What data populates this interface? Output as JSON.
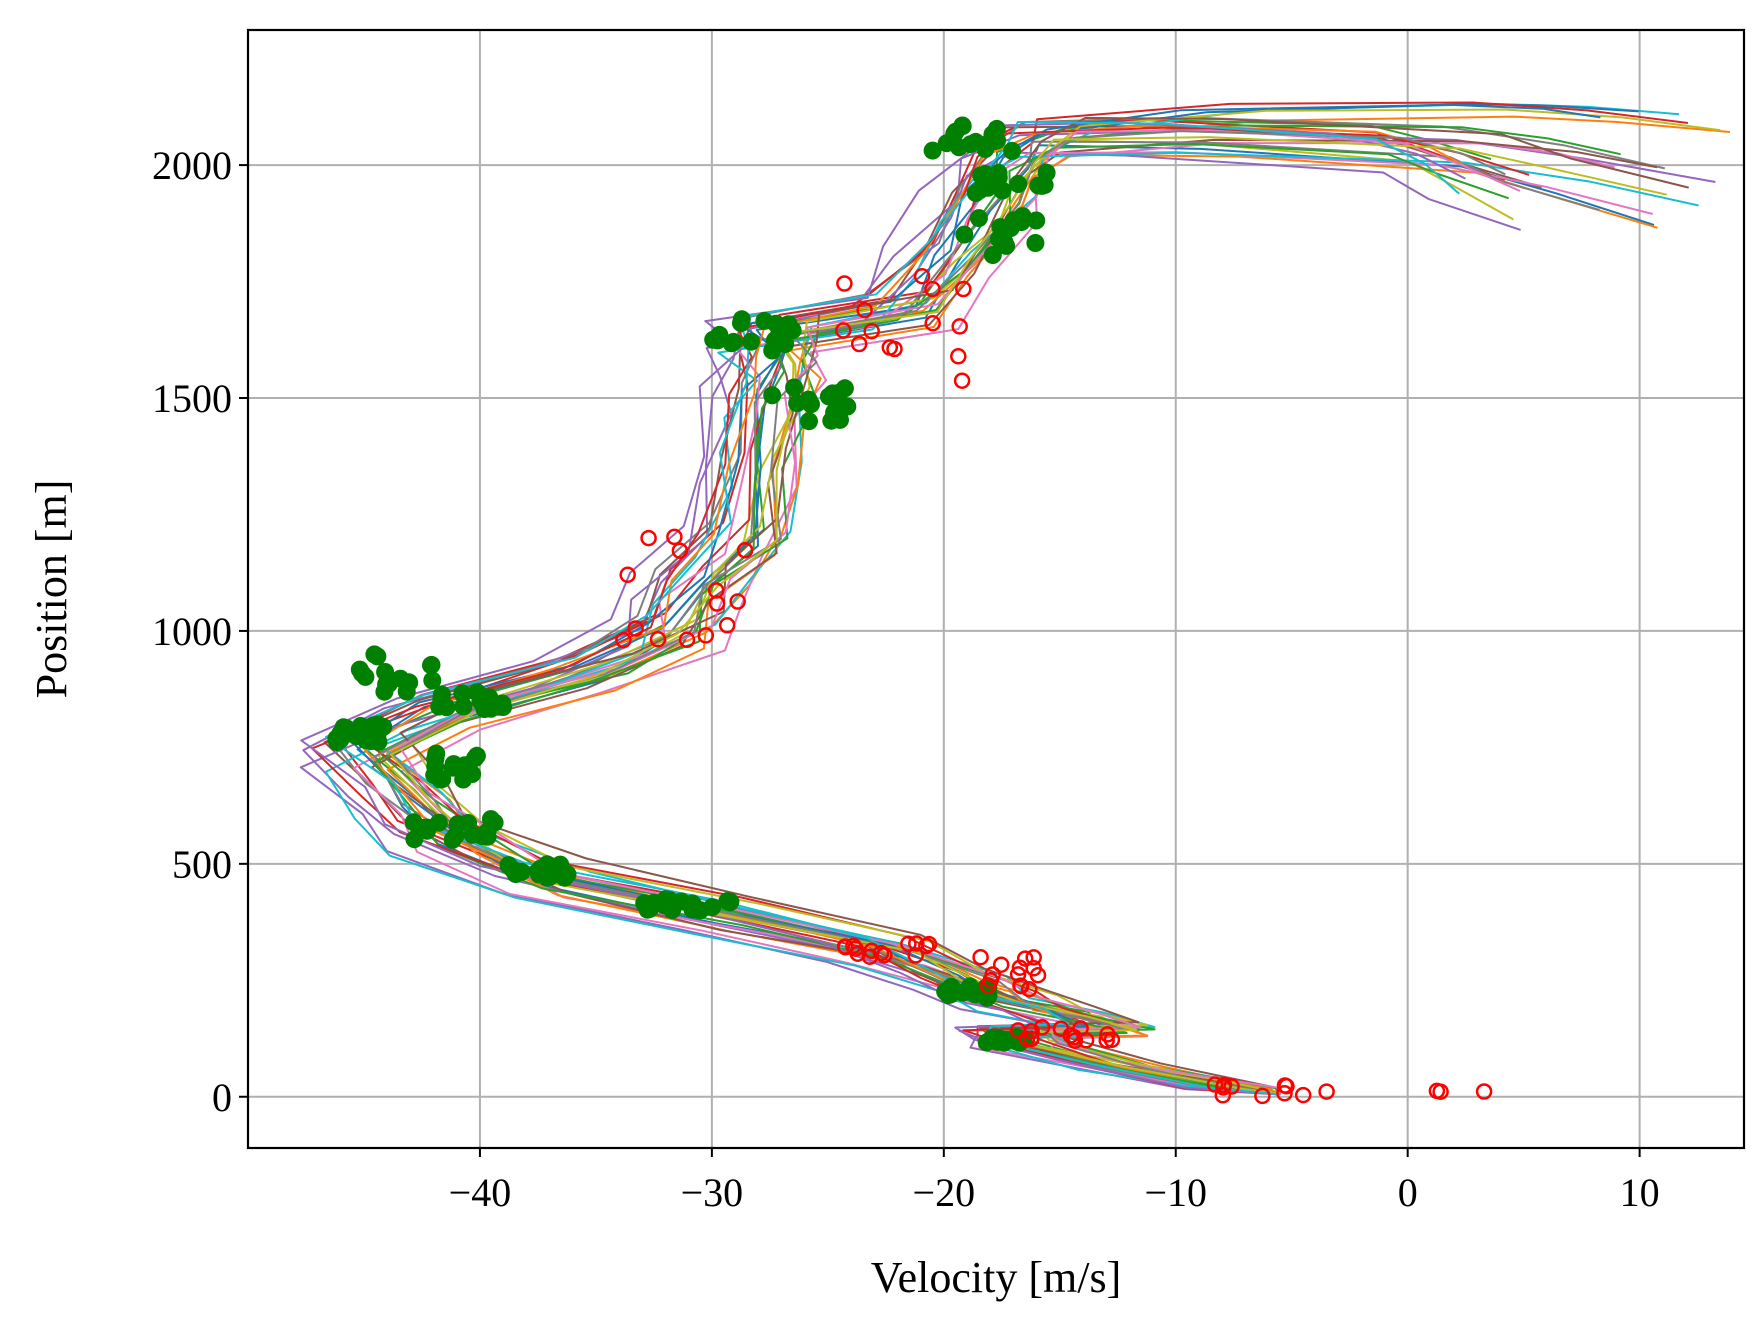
{
  "chart_data": {
    "type": "line",
    "title": "",
    "xlabel": "Velocity [m/s]",
    "ylabel": "Position [m]",
    "xlim": [
      -50,
      14.5
    ],
    "ylim": [
      -110,
      2290
    ],
    "xticks": [
      -40,
      -30,
      -20,
      -10,
      0,
      10
    ],
    "xtick_labels": [
      "−40",
      "−30",
      "−20",
      "−10",
      "0",
      "10"
    ],
    "yticks": [
      0,
      500,
      1000,
      1500,
      2000
    ],
    "ytick_labels": [
      "0",
      "500",
      "1000",
      "1500",
      "2000"
    ],
    "grid": true,
    "legend": "none",
    "trajectory_count": 30,
    "palette": [
      "#1f77b4",
      "#ff7f0e",
      "#2ca02c",
      "#d62728",
      "#9467bd",
      "#8c564b",
      "#e377c2",
      "#7f7f7f",
      "#bcbd22",
      "#17becf"
    ],
    "marker_colors": {
      "filled": "#008000",
      "open": "#ff0000"
    },
    "base_trajectory": [
      [
        -5.5,
        5
      ],
      [
        -8,
        18
      ],
      [
        -13,
        65
      ],
      [
        -17,
        115
      ],
      [
        -17.5,
        140
      ],
      [
        -13.5,
        145
      ],
      [
        -15,
        175
      ],
      [
        -17.5,
        205
      ],
      [
        -19.5,
        250
      ],
      [
        -23,
        315
      ],
      [
        -30,
        390
      ],
      [
        -38,
        470
      ],
      [
        -42,
        560
      ],
      [
        -43.5,
        640
      ],
      [
        -45.5,
        740
      ],
      [
        -42,
        830
      ],
      [
        -36,
        910
      ],
      [
        -32,
        1000
      ],
      [
        -31,
        1100
      ],
      [
        -29,
        1200
      ],
      [
        -28.5,
        1350
      ],
      [
        -28,
        1500
      ],
      [
        -27.5,
        1580
      ],
      [
        -28,
        1640
      ],
      [
        -22,
        1690
      ],
      [
        -20,
        1800
      ],
      [
        -18.5,
        1920
      ],
      [
        -17.5,
        2010
      ],
      [
        -16,
        2060
      ],
      [
        -10,
        2100
      ],
      [
        0,
        2110
      ],
      [
        3,
        2100
      ],
      [
        6,
        2080
      ]
    ],
    "filled_clusters": [
      {
        "x": [
          -18.5,
          -16.5
        ],
        "y": [
          115,
          130
        ]
      },
      {
        "x": [
          -20,
          -18
        ],
        "y": [
          210,
          240
        ]
      },
      {
        "x": [
          -33,
          -29
        ],
        "y": [
          400,
          425
        ]
      },
      {
        "x": [
          -39,
          -36
        ],
        "y": [
          470,
          500
        ]
      },
      {
        "x": [
          -43,
          -39
        ],
        "y": [
          550,
          600
        ]
      },
      {
        "x": [
          -42,
          -40
        ],
        "y": [
          680,
          740
        ]
      },
      {
        "x": [
          -46.5,
          -44
        ],
        "y": [
          760,
          800
        ]
      },
      {
        "x": [
          -45.5,
          -42
        ],
        "y": [
          860,
          950
        ]
      },
      {
        "x": [
          -42,
          -39
        ],
        "y": [
          830,
          870
        ]
      },
      {
        "x": [
          -28,
          -23.5
        ],
        "y": [
          1450,
          1530
        ]
      },
      {
        "x": [
          -30,
          -26.5
        ],
        "y": [
          1600,
          1680
        ]
      },
      {
        "x": [
          -19.5,
          -16
        ],
        "y": [
          1800,
          1900
        ]
      },
      {
        "x": [
          -20.5,
          -17
        ],
        "y": [
          2030,
          2090
        ]
      },
      {
        "x": [
          -19,
          -15.5
        ],
        "y": [
          1940,
          1990
        ]
      }
    ],
    "open_clusters": [
      {
        "x": [
          -10,
          5
        ],
        "y": [
          0,
          30
        ]
      },
      {
        "x": [
          -17,
          -12.5
        ],
        "y": [
          120,
          150
        ]
      },
      {
        "x": [
          -19,
          -15.5
        ],
        "y": [
          230,
          300
        ]
      },
      {
        "x": [
          -24.5,
          -20.5
        ],
        "y": [
          300,
          330
        ]
      },
      {
        "x": [
          -34.5,
          -28
        ],
        "y": [
          980,
          1210
        ]
      },
      {
        "x": [
          -24.5,
          -19
        ],
        "y": [
          1510,
          1780
        ]
      }
    ]
  }
}
